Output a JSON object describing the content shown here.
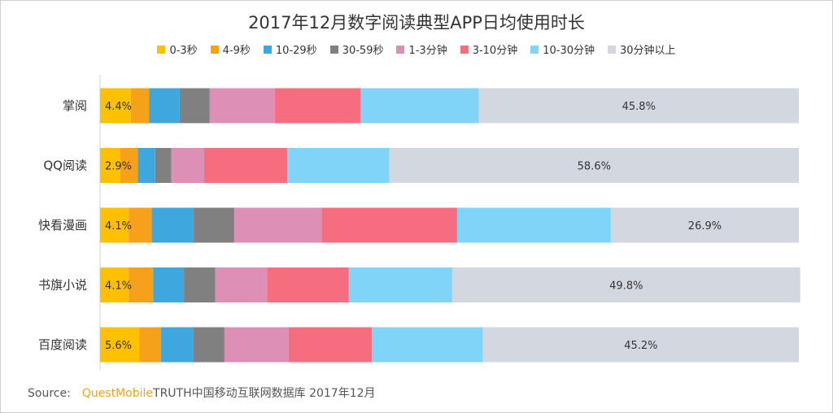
{
  "chart_data": {
    "type": "bar",
    "orientation": "horizontal",
    "stacked": true,
    "title": "2017年12月数字阅读典型APP日均使用时长",
    "categories": [
      "掌阅",
      "QQ阅读",
      "快看漫画",
      "书旗小说",
      "百度阅读"
    ],
    "series": [
      {
        "name": "0-3秒",
        "color": "#ffc000",
        "values": [
          4.4,
          2.9,
          4.1,
          4.1,
          5.6
        ]
      },
      {
        "name": "4-9秒",
        "color": "#f7a11a",
        "values": [
          2.6,
          2.5,
          3.3,
          3.5,
          3.1
        ]
      },
      {
        "name": "10-29秒",
        "color": "#3ea8de",
        "values": [
          4.4,
          2.5,
          6.0,
          4.4,
          4.6
        ]
      },
      {
        "name": "30-59秒",
        "color": "#808080",
        "values": [
          4.3,
          2.3,
          5.8,
          4.5,
          4.5
        ]
      },
      {
        "name": "1-3分钟",
        "color": "#de8fb5",
        "values": [
          9.3,
          4.7,
          12.5,
          7.4,
          9.2
        ]
      },
      {
        "name": "3-10分钟",
        "color": "#f56d7e",
        "values": [
          12.3,
          11.9,
          19.4,
          11.7,
          11.9
        ]
      },
      {
        "name": "10-30分钟",
        "color": "#7fd4f8",
        "values": [
          16.9,
          14.6,
          22.0,
          14.8,
          15.9
        ]
      },
      {
        "name": "30分钟以上",
        "color": "#d3d8e0",
        "values": [
          45.8,
          58.6,
          26.9,
          49.8,
          45.2
        ]
      }
    ],
    "data_labels": [
      {
        "category": "掌阅",
        "series": "0-3秒",
        "text": "4.4%"
      },
      {
        "category": "掌阅",
        "series": "30分钟以上",
        "text": "45.8%"
      },
      {
        "category": "QQ阅读",
        "series": "0-3秒",
        "text": "2.9%"
      },
      {
        "category": "QQ阅读",
        "series": "30分钟以上",
        "text": "58.6%"
      },
      {
        "category": "快看漫画",
        "series": "0-3秒",
        "text": "4.1%"
      },
      {
        "category": "快看漫画",
        "series": "30分钟以上",
        "text": "26.9%"
      },
      {
        "category": "书旗小说",
        "series": "0-3秒",
        "text": "4.1%"
      },
      {
        "category": "书旗小说",
        "series": "30分钟以上",
        "text": "49.8%"
      },
      {
        "category": "百度阅读",
        "series": "0-3秒",
        "text": "5.6%"
      },
      {
        "category": "百度阅读",
        "series": "30分钟以上",
        "text": "45.2%"
      }
    ],
    "xlim": [
      0,
      100
    ],
    "grid": false,
    "legend_position": "top"
  },
  "source": {
    "label": "Source:",
    "brand": "QuestMobile",
    "text": "TRUTH中国移动互联网数据库 2017年12月"
  }
}
